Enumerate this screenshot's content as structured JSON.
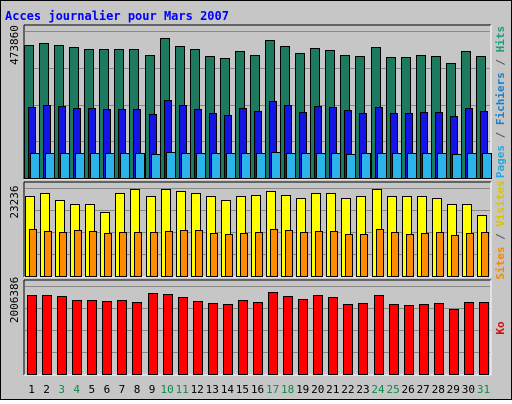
{
  "chart_data": {
    "type": "bar",
    "title": "Acces journalier pour Mars 2007",
    "categories": [
      "1",
      "2",
      "3",
      "4",
      "5",
      "6",
      "7",
      "8",
      "9",
      "10",
      "11",
      "12",
      "13",
      "14",
      "15",
      "16",
      "17",
      "18",
      "19",
      "20",
      "21",
      "22",
      "23",
      "24",
      "25",
      "26",
      "27",
      "28",
      "29",
      "30",
      "31"
    ],
    "weekend_days": [
      3,
      4,
      10,
      11,
      17,
      18,
      24,
      25,
      31
    ],
    "panels": [
      {
        "id": "traffic",
        "ymax_label": "473860",
        "ymax": 473860,
        "right_labels": [
          {
            "text": "Pages",
            "color": "#22aadd"
          },
          {
            "text": " / ",
            "color": "#555555"
          },
          {
            "text": "Fichiers",
            "color": "#1a7fc8"
          },
          {
            "text": " / ",
            "color": "#555555"
          },
          {
            "text": "Hits",
            "color": "#1e9e7a"
          }
        ],
        "series": [
          {
            "name": "Hits",
            "color": "#1e7a5e",
            "values": [
              430000,
              436000,
              430000,
              421000,
              415000,
              415000,
              417000,
              415000,
              398000,
              450000,
              426000,
              416000,
              393000,
              386000,
              411000,
              398000,
              446000,
              427000,
              404000,
              418000,
              413000,
              397000,
              392000,
              423000,
              391000,
              391000,
              395000,
              393000,
              370000,
              409000,
              392000
            ]
          },
          {
            "name": "Fichiers",
            "color": "#1414e6",
            "values": [
              230000,
              236000,
              232000,
              226000,
              225000,
              224000,
              224000,
              222000,
              207000,
              251000,
              236000,
              224000,
              208000,
              204000,
              225000,
              217000,
              248000,
              234000,
              214000,
              231000,
              230000,
              220000,
              210000,
              230000,
              211000,
              211000,
              212000,
              212000,
              199000,
              227000,
              217000
            ]
          },
          {
            "name": "Pages",
            "color": "#2ab4ea",
            "values": [
              80000,
              79000,
              81000,
              80000,
              81000,
              81000,
              82000,
              80000,
              78000,
              85000,
              82000,
              81000,
              79000,
              80000,
              81000,
              80000,
              84000,
              82000,
              80000,
              82000,
              80000,
              78000,
              79000,
              80000,
              80000,
              79000,
              80000,
              81000,
              78000,
              82000,
              81000
            ]
          }
        ]
      },
      {
        "id": "visits",
        "ymax_label": "23236",
        "ymax": 23236,
        "right_labels": [
          {
            "text": "Sites",
            "color": "#f28a00"
          },
          {
            "text": " / ",
            "color": "#555555"
          },
          {
            "text": "Visites",
            "color": "#d8c400"
          }
        ],
        "series": [
          {
            "name": "Visites",
            "color": "#ffff00",
            "values": [
              21000,
              22000,
              20000,
              19000,
              19000,
              17000,
              22000,
              23000,
              21000,
              23000,
              22500,
              22000,
              21000,
              20000,
              21000,
              21500,
              22500,
              21500,
              20500,
              22000,
              22000,
              20500,
              21000,
              23000,
              21000,
              21000,
              21000,
              20500,
              19000,
              19000,
              16000
            ]
          },
          {
            "name": "Sites",
            "color": "#ff8c00",
            "values": [
              12500,
              12000,
              11600,
              12200,
              11800,
              11300,
              11600,
              11700,
              11600,
              11800,
              12200,
              12200,
              11300,
              11100,
              11300,
              11700,
              12400,
              12100,
              11600,
              11800,
              12000,
              11200,
              11000,
              12400,
              11700,
              11000,
              11300,
              11500,
              10700,
              11300,
              11500
            ]
          }
        ]
      },
      {
        "id": "volume",
        "ymax_label": "2006386",
        "ymax": 2006386,
        "right_labels": [
          {
            "text": "Ko",
            "color": "#d01010"
          }
        ],
        "series": [
          {
            "name": "Ko",
            "color": "#ff0000",
            "values": [
              1790000,
              1800000,
              1780000,
              1690000,
              1690000,
              1670000,
              1690000,
              1640000,
              1850000,
              1820000,
              1760000,
              1660000,
              1620000,
              1600000,
              1690000,
              1640000,
              1870000,
              1780000,
              1710000,
              1790000,
              1760000,
              1600000,
              1610000,
              1800000,
              1600000,
              1570000,
              1600000,
              1620000,
              1490000,
              1640000,
              1650000
            ]
          }
        ]
      }
    ]
  }
}
